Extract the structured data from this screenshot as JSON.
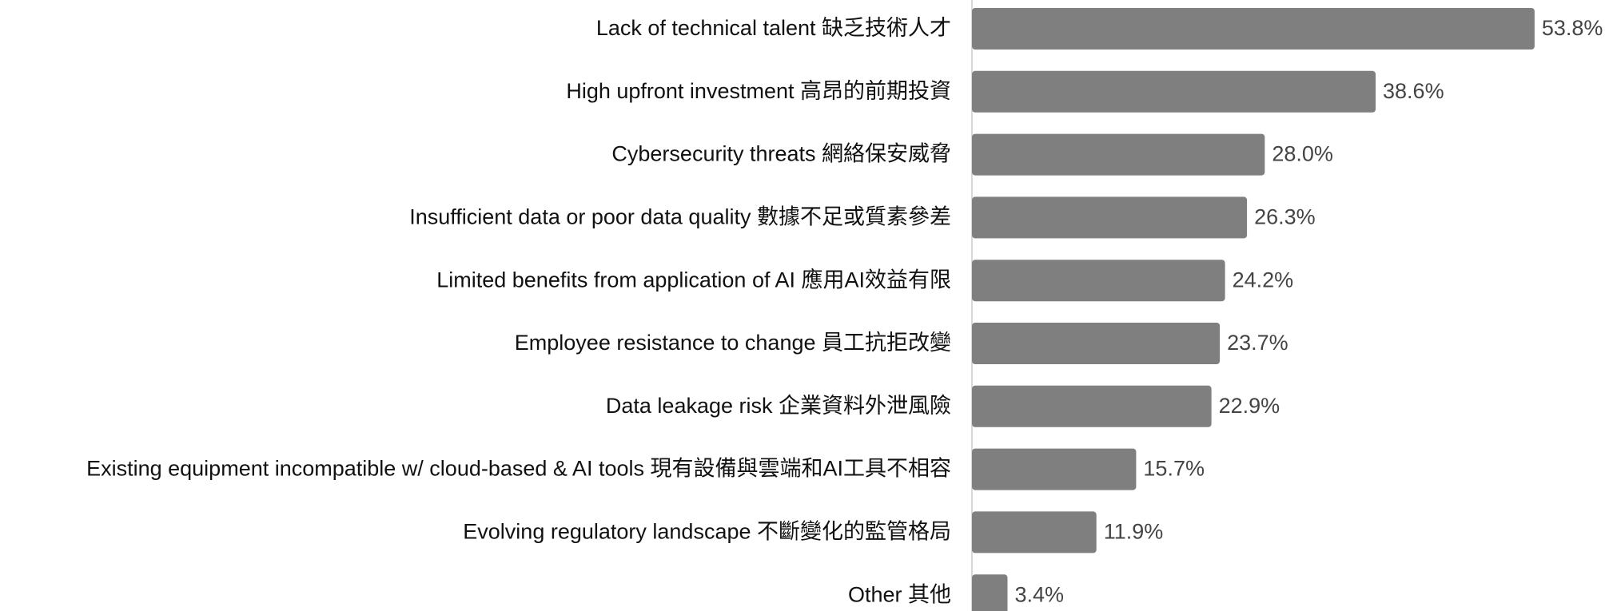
{
  "chart_data": {
    "type": "barh",
    "categories": [
      "Lack of technical talent 缺乏技術人才",
      "High upfront investment 高昂的前期投資",
      "Cybersecurity threats 網絡保安威脅",
      "Insufficient data or poor data quality 數據不足或質素參差",
      "Limited benefits from application of AI 應用AI效益有限",
      "Employee resistance to change 員工抗拒改變",
      "Data leakage risk 企業資料外泄風險",
      "Existing equipment incompatible w/ cloud-based & AI tools 現有設備與雲端和AI工具不相容",
      "Evolving regulatory landscape 不斷變化的監管格局",
      "Other 其他"
    ],
    "values": [
      53.8,
      38.6,
      28.0,
      26.3,
      24.2,
      23.7,
      22.9,
      15.7,
      11.9,
      3.4
    ],
    "value_labels": [
      "53.8%",
      "38.6%",
      "28.0%",
      "26.3%",
      "24.2%",
      "23.7%",
      "22.9%",
      "15.7%",
      "11.9%",
      "3.4%"
    ],
    "color": "#7f7f7f",
    "xlim": [
      0,
      60
    ]
  }
}
